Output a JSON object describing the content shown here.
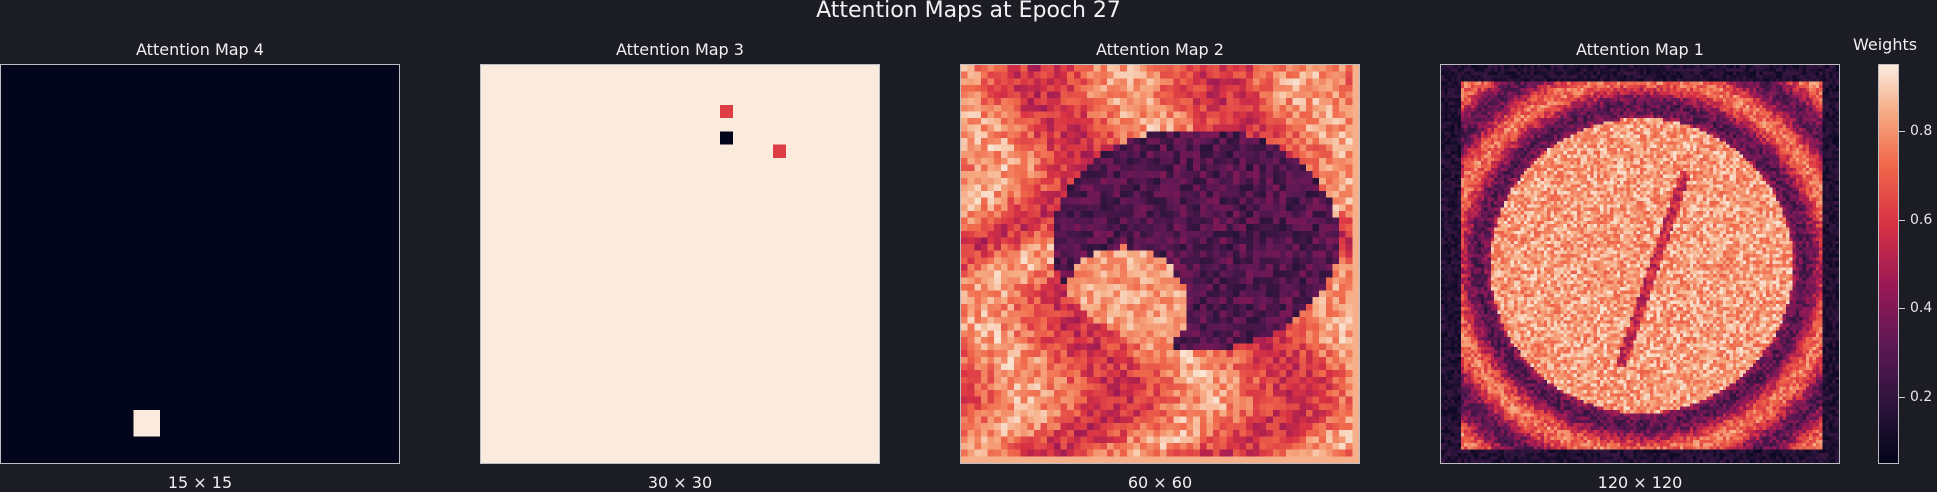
{
  "figure": {
    "title": "Attention Maps at Epoch 27"
  },
  "colorbar": {
    "label": "Weights",
    "range": [
      0.05,
      0.95
    ],
    "ticks": [
      "0.2",
      "0.4",
      "0.6",
      "0.8"
    ],
    "tick_values": [
      0.2,
      0.4,
      0.6,
      0.8
    ],
    "colormap": "rocket"
  },
  "chart_data": [
    {
      "type": "heatmap",
      "title": "Attention Map 4",
      "xlabel": "15 × 15",
      "grid_size": 15,
      "description_values": {
        "background": 0.05,
        "hotspots": [
          {
            "row": 13,
            "col": 5,
            "value": 0.95
          }
        ]
      }
    },
    {
      "type": "heatmap",
      "title": "Attention Map 3",
      "xlabel": "30 × 30",
      "grid_size": 30,
      "description_values": {
        "background": 0.95,
        "hotspots": [
          {
            "row": 3,
            "col": 18,
            "value": 0.62
          },
          {
            "row": 5,
            "col": 18,
            "value": 0.05
          },
          {
            "row": 6,
            "col": 22,
            "value": 0.62
          }
        ]
      }
    },
    {
      "type": "heatmap",
      "title": "Attention Map 2",
      "xlabel": "60 × 60",
      "grid_size": 60
    },
    {
      "type": "heatmap",
      "title": "Attention Map 1",
      "xlabel": "120 × 120",
      "grid_size": 120
    }
  ]
}
